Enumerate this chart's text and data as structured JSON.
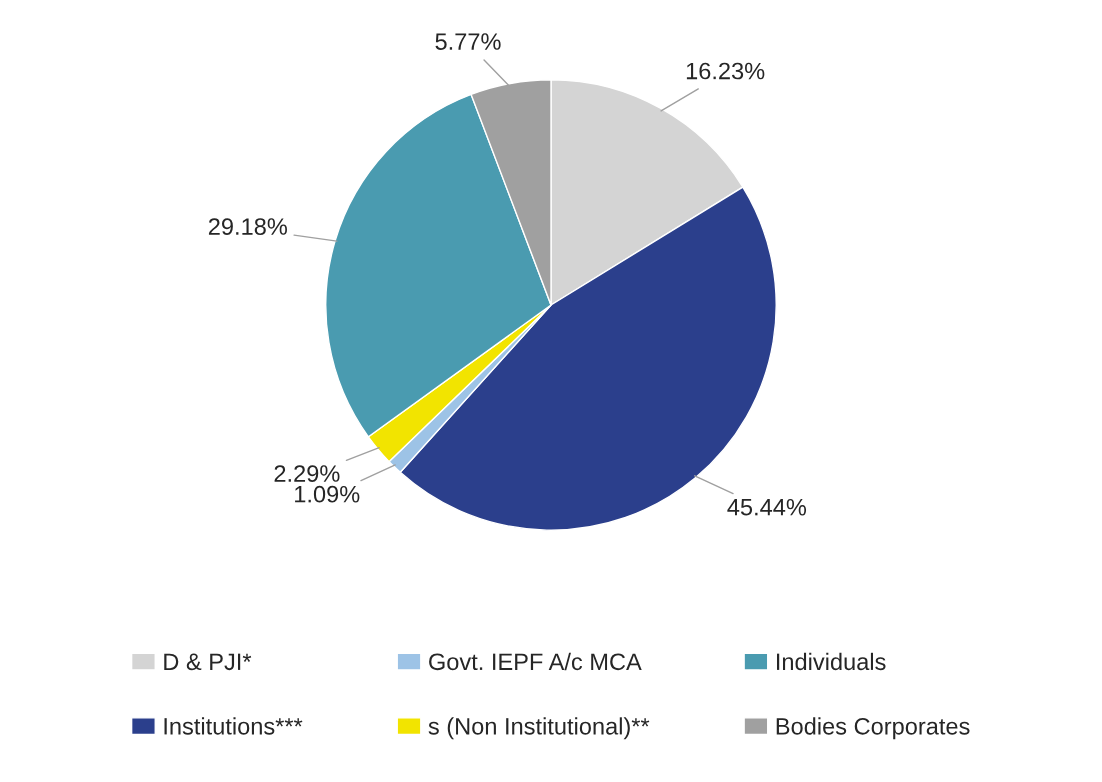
{
  "chart_data": {
    "type": "pie",
    "categories": [
      "D & PJI*",
      "Institutions***",
      "Govt. IEPF A/c MCA",
      "s (Non Institutional)**",
      "Individuals",
      "Bodies Corporates"
    ],
    "values": [
      16.23,
      45.44,
      1.09,
      2.29,
      29.18,
      5.77
    ],
    "value_labels": [
      "16.23%",
      "45.44%",
      "1.09%",
      "2.29%",
      "29.18%",
      "5.77%"
    ],
    "colors": [
      "#d4d4d4",
      "#2b3f8c",
      "#9dc3e6",
      "#f2e400",
      "#4a9bb0",
      "#a0a0a0"
    ],
    "legend": "bottom"
  }
}
